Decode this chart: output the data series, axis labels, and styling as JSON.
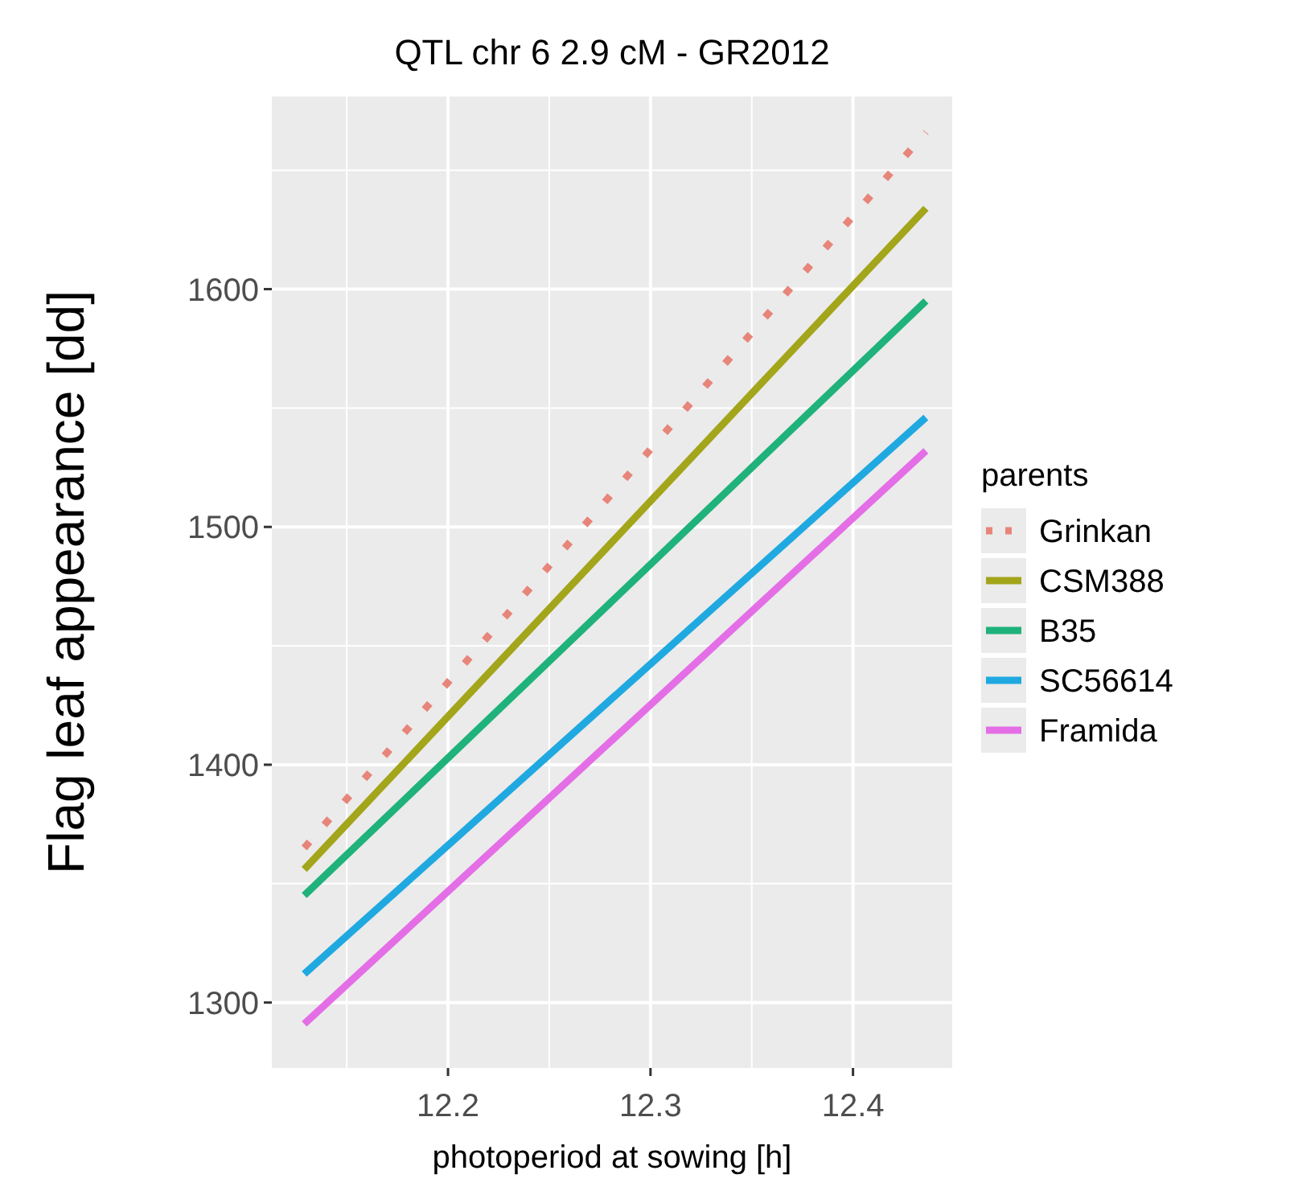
{
  "chart_data": {
    "type": "line",
    "title": "QTL chr 6 2.9 cM - GR2012",
    "xlabel": "photoperiod at sowing [h]",
    "ylabel": "Flag leaf appearance [dd]",
    "legend_title": "parents",
    "x": [
      12.129,
      12.436
    ],
    "series": [
      {
        "name": "Grinkan",
        "color": "#e7857a",
        "values": [
          1365,
          1666
        ],
        "line_style": "dotted"
      },
      {
        "name": "CSM388",
        "color": "#a3a51a",
        "values": [
          1356,
          1634
        ],
        "line_style": "solid"
      },
      {
        "name": "B35",
        "color": "#1fb27a",
        "values": [
          1345,
          1595
        ],
        "line_style": "solid"
      },
      {
        "name": "SC56614",
        "color": "#1fa9e0",
        "values": [
          1312,
          1546
        ],
        "line_style": "solid"
      },
      {
        "name": "Framida",
        "color": "#e46ee6",
        "values": [
          1291,
          1532
        ],
        "line_style": "solid"
      }
    ],
    "xlim": [
      12.113,
      12.449
    ],
    "ylim": [
      1272.5,
      1681
    ],
    "xticks": [
      12.2,
      12.3,
      12.4
    ],
    "yticks": [
      1300,
      1400,
      1500,
      1600
    ],
    "grid": true,
    "legend": "right"
  }
}
